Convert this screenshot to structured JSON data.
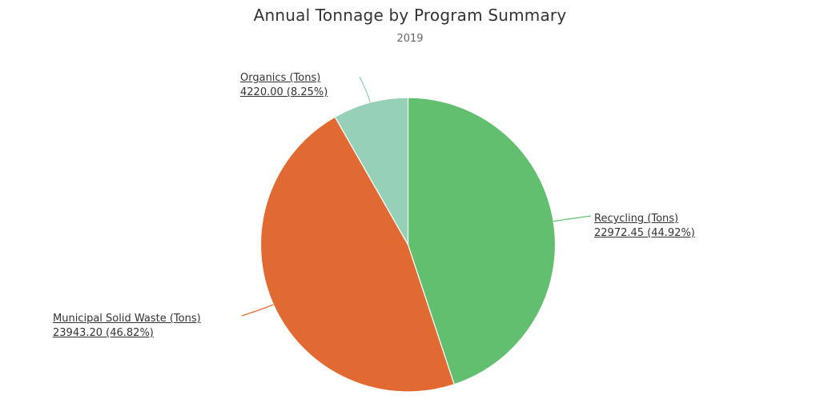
{
  "chart_data": {
    "type": "pie",
    "title": "Annual Tonnage by Program Summary",
    "subtitle": "2019",
    "slices": [
      {
        "name": "Recycling (Tons)",
        "value": 22972.45,
        "percent_label": "22972.45 (44.92%)",
        "color": "#62bf6f"
      },
      {
        "name": "Municipal Solid Waste (Tons)",
        "value": 23943.2,
        "percent_label": "23943.20 (46.82%)",
        "color": "#e06a31"
      },
      {
        "name": "Organics (Tons)",
        "value": 4220.0,
        "percent_label": "4220.00 (8.25%)",
        "color": "#96d1b7"
      }
    ]
  }
}
